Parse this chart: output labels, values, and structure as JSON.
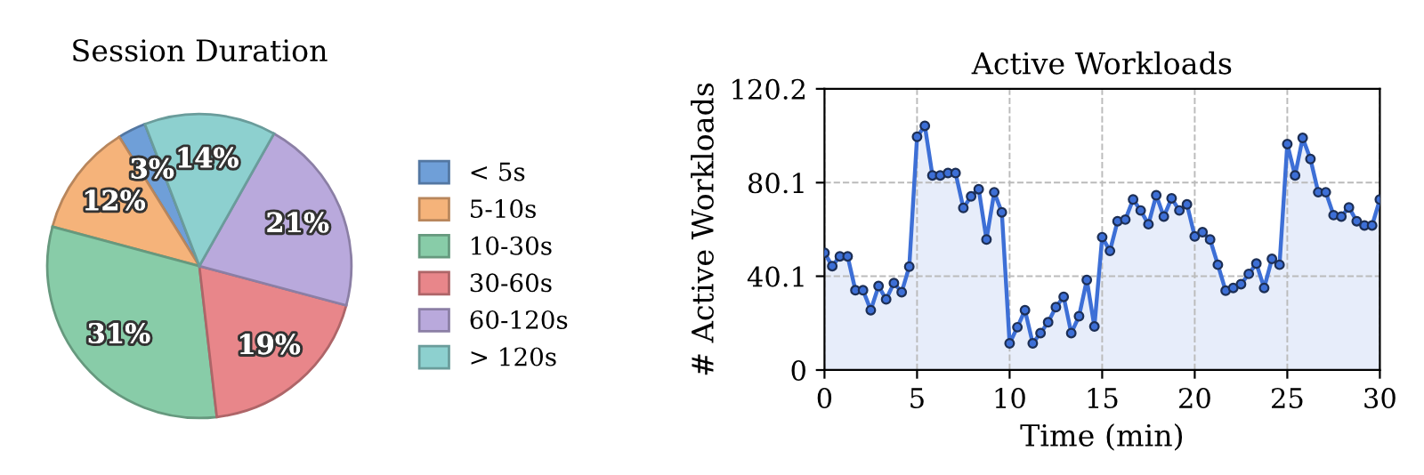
{
  "chart_data": [
    {
      "type": "pie",
      "title": "Session Duration",
      "categories": [
        "< 5s",
        "5-10s",
        "10-30s",
        "30-60s",
        "60-120s",
        "> 120s"
      ],
      "values": [
        3,
        12,
        31,
        19,
        21,
        14
      ],
      "colors": [
        "#6f9fd8",
        "#f5b37a",
        "#88cca8",
        "#e8868a",
        "#b9a9dc",
        "#8dd0cf"
      ],
      "value_labels": [
        "3%",
        "12%",
        "31%",
        "19%",
        "21%",
        "14%"
      ],
      "legend": "right"
    },
    {
      "type": "area",
      "title": "Active Workloads",
      "xlabel": "Time (min)",
      "ylabel": "# Active Workloads",
      "xlim": [
        0,
        30
      ],
      "xticks": [
        0,
        5,
        10,
        15,
        20,
        25,
        30
      ],
      "ylim": [
        0,
        120.2
      ],
      "yticks": [
        0,
        40.1,
        80.1,
        120.2
      ],
      "grid": true,
      "marker": "circle",
      "line_style": "solid",
      "series": [
        {
          "color": "#3d6fd6",
          "x": [
            0,
            0.42,
            0.83,
            1.25,
            1.67,
            2.08,
            2.5,
            2.92,
            3.33,
            3.75,
            4.17,
            4.58,
            5,
            5.42,
            5.83,
            6.25,
            6.67,
            7.08,
            7.5,
            7.92,
            8.33,
            8.75,
            9.17,
            9.58,
            10,
            10.42,
            10.83,
            11.25,
            11.67,
            12.08,
            12.5,
            12.92,
            13.33,
            13.75,
            14.17,
            14.58,
            15,
            15.42,
            15.83,
            16.25,
            16.67,
            17.08,
            17.5,
            17.92,
            18.33,
            18.75,
            19.17,
            19.58,
            20,
            20.42,
            20.83,
            21.25,
            21.67,
            22.08,
            22.5,
            22.92,
            23.33,
            23.75,
            24.17,
            24.58,
            25,
            25.42,
            25.83,
            26.25,
            26.67,
            27.08,
            27.5,
            27.92,
            28.33,
            28.75,
            29.17,
            29.58,
            30
          ],
          "values": [
            50.1,
            44.4,
            48.6,
            48.6,
            34.1,
            34.1,
            25.6,
            35.9,
            30.2,
            37.2,
            33.3,
            44.2,
            99.7,
            104.4,
            83.2,
            83.2,
            84.2,
            84.2,
            69.3,
            74.2,
            77.3,
            55.8,
            76.0,
            67.4,
            11.4,
            18.3,
            25.6,
            11.4,
            15.8,
            20.4,
            26.9,
            31.3,
            15.8,
            23.0,
            38.5,
            18.6,
            56.8,
            50.9,
            63.6,
            64.3,
            72.9,
            68.2,
            62.3,
            74.7,
            65.6,
            73.4,
            68.2,
            70.8,
            57.1,
            58.9,
            55.8,
            45.0,
            33.9,
            35.1,
            36.7,
            41.1,
            45.5,
            35.1,
            47.5,
            45.0,
            96.6,
            83.2,
            99.2,
            90.2,
            76.0,
            76.0,
            66.2,
            65.6,
            69.5,
            63.6,
            61.8,
            61.8,
            72.9
          ]
        }
      ]
    }
  ]
}
